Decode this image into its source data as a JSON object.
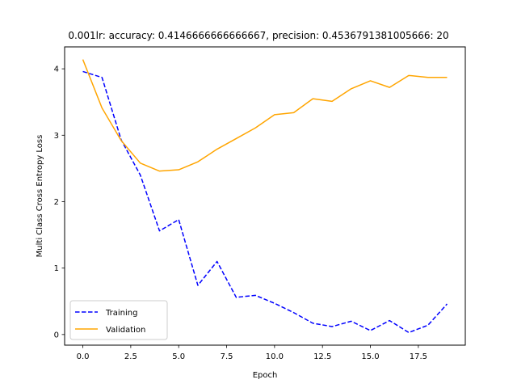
{
  "chart_data": {
    "type": "line",
    "title": "0.001lr: accuracy: 0.4146666666666667, precision: 0.4536791381005666: 20",
    "xlabel": "Epoch",
    "ylabel": "Multi Class Cross Entropy Loss",
    "xlim": [
      -0.95,
      19.95
    ],
    "ylim": [
      -0.16,
      4.33
    ],
    "xticks": [
      0.0,
      2.5,
      5.0,
      7.5,
      10.0,
      12.5,
      15.0,
      17.5
    ],
    "xtick_labels": [
      "0.0",
      "2.5",
      "5.0",
      "7.5",
      "10.0",
      "12.5",
      "15.0",
      "17.5"
    ],
    "yticks": [
      0,
      1,
      2,
      3,
      4
    ],
    "ytick_labels": [
      "0",
      "1",
      "2",
      "3",
      "4"
    ],
    "grid": false,
    "legend_position": "lower-left",
    "x": [
      0,
      1,
      2,
      3,
      4,
      5,
      6,
      7,
      8,
      9,
      10,
      11,
      12,
      13,
      14,
      15,
      16,
      17,
      18,
      19
    ],
    "series": [
      {
        "name": "Training",
        "color": "#0000ff",
        "style": "dashed",
        "values": [
          3.96,
          3.87,
          2.93,
          2.4,
          1.56,
          1.73,
          0.74,
          1.1,
          0.56,
          0.59,
          0.47,
          0.33,
          0.17,
          0.12,
          0.2,
          0.06,
          0.21,
          0.03,
          0.14,
          0.46
        ]
      },
      {
        "name": "Validation",
        "color": "#ffa500",
        "style": "solid",
        "values": [
          4.14,
          3.41,
          2.92,
          2.58,
          2.46,
          2.48,
          2.6,
          2.79,
          2.95,
          3.11,
          3.31,
          3.34,
          3.55,
          3.51,
          3.7,
          3.82,
          3.72,
          3.9,
          3.87,
          3.87
        ]
      }
    ]
  }
}
